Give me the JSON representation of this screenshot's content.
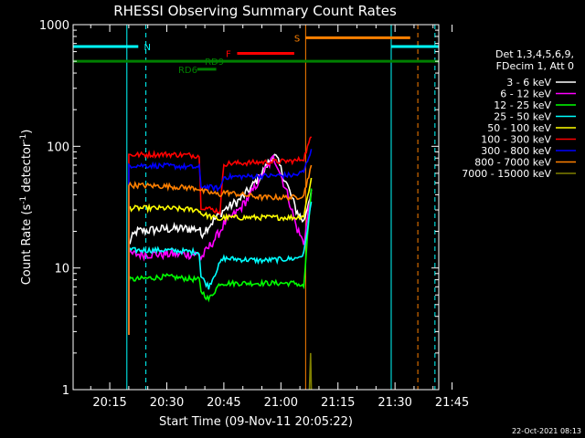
{
  "chart_data": {
    "type": "line",
    "title": "RHESSI Observing Summary Count Rates",
    "xlabel": "Start Time (09-Nov-11 20:05:22)",
    "ylabel_main": "Count Rate (s",
    "ylabel_sup1": "-1",
    "ylabel_mid": " detector",
    "ylabel_sup2": "-1",
    "ylabel_end": ")",
    "y_scale": "log",
    "ylim": [
      1,
      1000
    ],
    "xlim_min": [
      5.37,
      101.5
    ],
    "x_ticks": [
      {
        "m": 15,
        "label": "20:15"
      },
      {
        "m": 30,
        "label": "20:30"
      },
      {
        "m": 45,
        "label": "20:45"
      },
      {
        "m": 60,
        "label": "21:00"
      },
      {
        "m": 75,
        "label": "21:15"
      },
      {
        "m": 90,
        "label": "21:30"
      },
      {
        "m": 105,
        "label": "21:45"
      }
    ],
    "y_ticks": [
      {
        "v": 1,
        "label": "1"
      },
      {
        "v": 10,
        "label": "10"
      },
      {
        "v": 100,
        "label": "100"
      },
      {
        "v": 1000,
        "label": "1000"
      }
    ],
    "legend_header": [
      "Det 1,3,4,5,6,9,",
      "FDecim 1, Att 0"
    ],
    "legend_placement": "right",
    "series": [
      {
        "name": "3 - 6 keV",
        "color": "#ffffff",
        "x": [
          20,
          22,
          30,
          38.5,
          39,
          44,
          45,
          49,
          52,
          55,
          58,
          59,
          62,
          64,
          66,
          68
        ],
        "y": [
          16,
          20,
          21,
          21,
          19,
          28,
          30,
          36,
          45,
          60,
          85,
          78,
          45,
          30,
          24,
          44
        ]
      },
      {
        "name": "6 - 12 keV",
        "color": "#ff00ff",
        "x": [
          20,
          30,
          38.5,
          39,
          44,
          45,
          49,
          52,
          55,
          58,
          59,
          62,
          64,
          66,
          68
        ],
        "y": [
          13,
          13,
          13,
          12,
          20,
          23,
          30,
          40,
          58,
          80,
          72,
          38,
          22,
          16,
          42
        ]
      },
      {
        "name": "12 - 25 keV",
        "color": "#00ff00",
        "x": [
          20,
          30,
          38.5,
          39,
          41,
          44,
          45,
          55,
          64,
          66,
          68
        ],
        "y": [
          8,
          8.5,
          8,
          6.5,
          5.5,
          7.5,
          7.5,
          7.5,
          7.5,
          7,
          45
        ]
      },
      {
        "name": "25 - 50 keV",
        "color": "#00ffff",
        "x": [
          20,
          30,
          38.5,
          39,
          41,
          44,
          45,
          55,
          64,
          66,
          68
        ],
        "y": [
          14,
          14,
          13.5,
          8.5,
          7,
          11,
          12,
          11.5,
          12,
          13,
          35
        ]
      },
      {
        "name": "50 - 100 keV",
        "color": "#ffff00",
        "x": [
          20,
          30,
          38.5,
          39,
          44,
          45,
          55,
          64,
          66,
          68
        ],
        "y": [
          31,
          31,
          30,
          28,
          25,
          26,
          26,
          26,
          27,
          55
        ]
      },
      {
        "name": "100 - 300 keV",
        "color": "#ff0000",
        "x": [
          20,
          30,
          38.5,
          39,
          44,
          45,
          55,
          64,
          66,
          68
        ],
        "y": [
          85,
          86,
          84,
          32,
          29,
          72,
          74,
          76,
          80,
          120
        ]
      },
      {
        "name": "300 - 800 keV",
        "color": "#0000ff",
        "x": [
          20,
          30,
          38.5,
          39,
          44,
          45,
          55,
          64,
          66,
          68
        ],
        "y": [
          70,
          69,
          67,
          47,
          45,
          56,
          57,
          58,
          62,
          95
        ]
      },
      {
        "name": "800 - 7000 keV",
        "color": "#ff8000",
        "x": [
          20,
          30,
          38.5,
          39,
          44,
          45,
          55,
          64,
          66,
          68
        ],
        "y": [
          48,
          47,
          45,
          43,
          40,
          42,
          38,
          38,
          40,
          70
        ]
      },
      {
        "name": "7000 - 15000 keV",
        "color": "#808000",
        "x": [
          67.5,
          67.8,
          68.0
        ],
        "y": [
          1,
          2,
          1
        ]
      }
    ],
    "bars": [
      {
        "label": "N",
        "color": "#00ffff",
        "y": 660,
        "x": [
          5.37,
          22.5
        ],
        "label_x": 24
      },
      {
        "label": "",
        "color": "#00ffff",
        "y": 660,
        "x": [
          89,
          101.5
        ],
        "label_x": null
      },
      {
        "label": "S",
        "color": "#ff8000",
        "y": 780,
        "x": [
          66.5,
          94
        ],
        "label_x": 63.5
      },
      {
        "label": "F",
        "color": "#ff0000",
        "y": 580,
        "x": [
          48.5,
          63.5
        ],
        "label_x": 45.5
      },
      {
        "label": "RD6",
        "color": "#008000",
        "y": 430,
        "x": [
          38,
          43
        ],
        "label_x": 33
      },
      {
        "label": "RD9",
        "color": "#008000",
        "y": 500,
        "x": [
          5.37,
          101.5
        ],
        "label_x": 40
      }
    ],
    "vlines": [
      {
        "x": 19.5,
        "color": "#00ffff",
        "dash": false
      },
      {
        "x": 24.5,
        "color": "#00ffff",
        "dash": true
      },
      {
        "x": 66.5,
        "color": "#ff8000",
        "dash": false
      },
      {
        "x": 89,
        "color": "#00ffff",
        "dash": false
      },
      {
        "x": 96,
        "color": "#ff8000",
        "dash": true
      },
      {
        "x": 100.5,
        "color": "#00ffff",
        "dash": true
      }
    ],
    "timestamp": "22-Oct-2021 08:13"
  }
}
